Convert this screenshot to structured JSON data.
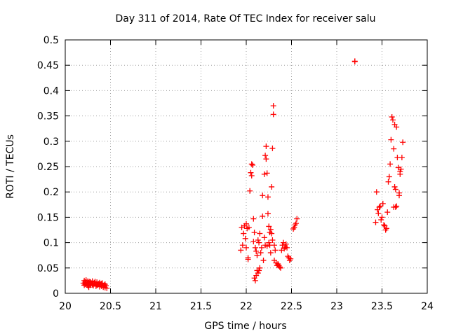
{
  "chart_data": {
    "type": "scatter",
    "title": "Day 311 of 2014, Rate Of TEC Index for receiver salu",
    "xlabel": "GPS time / hours",
    "ylabel": "ROTI / TECUs",
    "xlim": [
      20,
      24
    ],
    "ylim": [
      0,
      0.5
    ],
    "xticks": [
      "20",
      "20.5",
      "21",
      "21.5",
      "22",
      "22.5",
      "23",
      "23.5",
      "24"
    ],
    "yticks": [
      "0",
      "0.05",
      "0.1",
      "0.15",
      "0.2",
      "0.25",
      "0.3",
      "0.35",
      "0.4",
      "0.45",
      "0.5"
    ],
    "grid": true,
    "marker": "+",
    "color": "#ff0000",
    "series": [
      {
        "name": "ROTI",
        "points": [
          [
            20.2,
            0.02
          ],
          [
            20.21,
            0.025
          ],
          [
            20.21,
            0.016
          ],
          [
            20.22,
            0.022
          ],
          [
            20.23,
            0.019
          ],
          [
            20.23,
            0.026
          ],
          [
            20.24,
            0.017
          ],
          [
            20.25,
            0.024
          ],
          [
            20.25,
            0.015
          ],
          [
            20.26,
            0.021
          ],
          [
            20.27,
            0.018
          ],
          [
            20.27,
            0.023
          ],
          [
            20.28,
            0.016
          ],
          [
            20.29,
            0.02
          ],
          [
            20.3,
            0.017
          ],
          [
            20.3,
            0.024
          ],
          [
            20.31,
            0.015
          ],
          [
            20.32,
            0.021
          ],
          [
            20.33,
            0.019
          ],
          [
            20.34,
            0.014
          ],
          [
            20.35,
            0.022
          ],
          [
            20.36,
            0.016
          ],
          [
            20.37,
            0.019
          ],
          [
            20.38,
            0.013
          ],
          [
            20.39,
            0.018
          ],
          [
            20.4,
            0.014
          ],
          [
            20.41,
            0.02
          ],
          [
            20.42,
            0.012
          ],
          [
            20.43,
            0.016
          ],
          [
            20.44,
            0.011
          ],
          [
            20.45,
            0.015
          ],
          [
            20.46,
            0.01
          ],
          [
            20.22,
            0.018
          ],
          [
            20.26,
            0.012
          ],
          [
            20.35,
            0.017
          ],
          [
            20.4,
            0.019
          ],
          [
            20.44,
            0.018
          ],
          [
            20.28,
            0.022
          ],
          [
            20.33,
            0.023
          ],
          [
            20.38,
            0.021
          ],
          [
            21.94,
            0.085
          ],
          [
            21.95,
            0.13
          ],
          [
            21.96,
            0.095
          ],
          [
            21.97,
            0.118
          ],
          [
            21.98,
            0.133
          ],
          [
            21.99,
            0.108
          ],
          [
            22.0,
            0.137
          ],
          [
            22.0,
            0.09
          ],
          [
            22.01,
            0.128
          ],
          [
            22.02,
            0.07
          ],
          [
            22.02,
            0.067
          ],
          [
            22.03,
            0.13
          ],
          [
            22.04,
            0.202
          ],
          [
            22.05,
            0.238
          ],
          [
            22.06,
            0.232
          ],
          [
            22.06,
            0.255
          ],
          [
            22.07,
            0.253
          ],
          [
            22.08,
            0.147
          ],
          [
            22.08,
            0.102
          ],
          [
            22.09,
            0.12
          ],
          [
            22.09,
            0.03
          ],
          [
            22.1,
            0.025
          ],
          [
            22.1,
            0.09
          ],
          [
            22.11,
            0.083
          ],
          [
            22.11,
            0.035
          ],
          [
            22.12,
            0.075
          ],
          [
            22.12,
            0.045
          ],
          [
            22.13,
            0.04
          ],
          [
            22.13,
            0.105
          ],
          [
            22.14,
            0.1
          ],
          [
            22.14,
            0.045
          ],
          [
            22.15,
            0.05
          ],
          [
            22.15,
            0.118
          ],
          [
            22.16,
            0.08
          ],
          [
            22.17,
            0.09
          ],
          [
            22.18,
            0.193
          ],
          [
            22.18,
            0.152
          ],
          [
            22.19,
            0.065
          ],
          [
            22.2,
            0.11
          ],
          [
            22.2,
            0.235
          ],
          [
            22.21,
            0.272
          ],
          [
            22.21,
            0.095
          ],
          [
            22.22,
            0.29
          ],
          [
            22.22,
            0.265
          ],
          [
            22.23,
            0.237
          ],
          [
            22.23,
            0.093
          ],
          [
            22.24,
            0.19
          ],
          [
            22.24,
            0.157
          ],
          [
            22.25,
            0.132
          ],
          [
            22.25,
            0.1
          ],
          [
            22.26,
            0.12
          ],
          [
            22.26,
            0.095
          ],
          [
            22.27,
            0.126
          ],
          [
            22.27,
            0.08
          ],
          [
            22.28,
            0.21
          ],
          [
            22.28,
            0.118
          ],
          [
            22.29,
            0.286
          ],
          [
            22.29,
            0.105
          ],
          [
            22.3,
            0.37
          ],
          [
            22.3,
            0.353
          ],
          [
            22.31,
            0.095
          ],
          [
            22.31,
            0.065
          ],
          [
            22.32,
            0.085
          ],
          [
            22.33,
            0.06
          ],
          [
            22.34,
            0.055
          ],
          [
            22.35,
            0.058
          ],
          [
            22.36,
            0.055
          ],
          [
            22.37,
            0.052
          ],
          [
            22.38,
            0.05
          ],
          [
            22.39,
            0.085
          ],
          [
            22.4,
            0.095
          ],
          [
            22.41,
            0.1
          ],
          [
            22.42,
            0.088
          ],
          [
            22.43,
            0.091
          ],
          [
            22.44,
            0.097
          ],
          [
            22.45,
            0.09
          ],
          [
            22.46,
            0.073
          ],
          [
            22.47,
            0.07
          ],
          [
            22.48,
            0.065
          ],
          [
            22.49,
            0.068
          ],
          [
            22.52,
            0.127
          ],
          [
            22.53,
            0.13
          ],
          [
            22.54,
            0.135
          ],
          [
            22.55,
            0.138
          ],
          [
            22.56,
            0.147
          ],
          [
            23.2,
            0.458
          ],
          [
            23.2,
            0.457
          ],
          [
            23.43,
            0.14
          ],
          [
            23.44,
            0.2
          ],
          [
            23.45,
            0.165
          ],
          [
            23.46,
            0.158
          ],
          [
            23.47,
            0.17
          ],
          [
            23.48,
            0.172
          ],
          [
            23.49,
            0.145
          ],
          [
            23.5,
            0.15
          ],
          [
            23.51,
            0.177
          ],
          [
            23.52,
            0.135
          ],
          [
            23.53,
            0.133
          ],
          [
            23.54,
            0.125
          ],
          [
            23.55,
            0.128
          ],
          [
            23.56,
            0.16
          ],
          [
            23.57,
            0.22
          ],
          [
            23.58,
            0.23
          ],
          [
            23.59,
            0.255
          ],
          [
            23.6,
            0.303
          ],
          [
            23.61,
            0.348
          ],
          [
            23.62,
            0.342
          ],
          [
            23.63,
            0.285
          ],
          [
            23.64,
            0.333
          ],
          [
            23.64,
            0.21
          ],
          [
            23.65,
            0.205
          ],
          [
            23.65,
            0.17
          ],
          [
            23.66,
            0.172
          ],
          [
            23.66,
            0.328
          ],
          [
            23.67,
            0.268
          ],
          [
            23.68,
            0.248
          ],
          [
            23.69,
            0.198
          ],
          [
            23.7,
            0.235
          ],
          [
            23.7,
            0.24
          ],
          [
            23.71,
            0.245
          ],
          [
            23.72,
            0.268
          ],
          [
            23.73,
            0.298
          ],
          [
            23.69,
            0.193
          ],
          [
            23.63,
            0.17
          ]
        ]
      }
    ]
  }
}
